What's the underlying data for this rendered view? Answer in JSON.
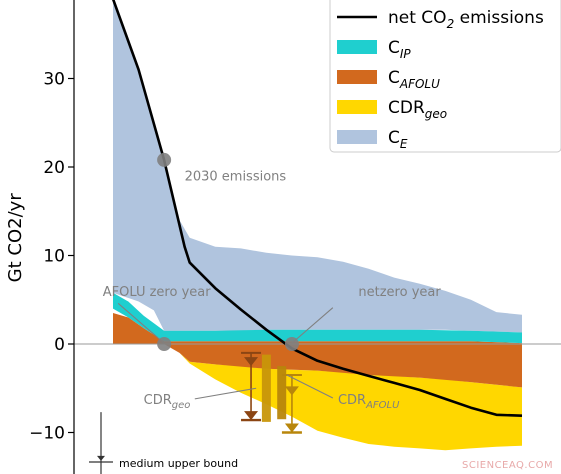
{
  "chart_data": {
    "type": "area",
    "title": "",
    "xlabel": "",
    "ylabel": "Gt CO2/yr",
    "ylim": [
      -14.5,
      39
    ],
    "yticks": [
      -10,
      0,
      10,
      20,
      30
    ],
    "x_range": [
      2020,
      2100
    ],
    "x_ticks_visible": false,
    "grid": false,
    "legend_position": "top-right",
    "net_emissions_line": {
      "name": "net CO2 emissions",
      "color": "#000000",
      "points": [
        [
          2020,
          39
        ],
        [
          2025,
          31
        ],
        [
          2030,
          20.8
        ],
        [
          2034,
          11
        ],
        [
          2035,
          9.2
        ],
        [
          2040,
          6.3
        ],
        [
          2045,
          3.9
        ],
        [
          2050,
          1.6
        ],
        [
          2055,
          -0.5
        ],
        [
          2060,
          -1.9
        ],
        [
          2065,
          -2.8
        ],
        [
          2070,
          -3.6
        ],
        [
          2075,
          -4.4
        ],
        [
          2080,
          -5.2
        ],
        [
          2085,
          -6.2
        ],
        [
          2090,
          -7.2
        ],
        [
          2095,
          -8.0
        ],
        [
          2100,
          -8.1
        ]
      ]
    },
    "stacked_series": [
      {
        "name": "C_IP",
        "legend_main": "C",
        "legend_sub": "IP",
        "color": "#1fcfcf",
        "points": [
          [
            2020,
            4.0,
            5.8
          ],
          [
            2023,
            3.0,
            4.8
          ],
          [
            2026,
            1.8,
            3.2
          ],
          [
            2030,
            0.3,
            1.5
          ],
          [
            2035,
            0.3,
            1.5
          ],
          [
            2040,
            0.3,
            1.5
          ],
          [
            2050,
            0.3,
            1.6
          ],
          [
            2060,
            0.3,
            1.6
          ],
          [
            2070,
            0.3,
            1.6
          ],
          [
            2080,
            0.3,
            1.6
          ],
          [
            2090,
            0.3,
            1.5
          ],
          [
            2100,
            0.1,
            1.3
          ]
        ]
      },
      {
        "name": "C_AFOLU",
        "legend_main": "C",
        "legend_sub": "AFOLU",
        "color": "#d2691e",
        "points": [
          [
            2020,
            0,
            3.5
          ],
          [
            2023,
            0,
            3.0
          ],
          [
            2026,
            0,
            1.8
          ],
          [
            2030,
            0,
            0.3
          ],
          [
            2033,
            -1.0,
            0.3
          ],
          [
            2035,
            -2.0,
            0.3
          ],
          [
            2040,
            -2.3,
            0.3
          ],
          [
            2050,
            -2.8,
            0.3
          ],
          [
            2060,
            -3.0,
            0.3
          ],
          [
            2070,
            -3.5,
            0.3
          ],
          [
            2080,
            -3.8,
            0.3
          ],
          [
            2090,
            -4.3,
            0.3
          ],
          [
            2100,
            -4.9,
            0.1
          ]
        ]
      },
      {
        "name": "CDR_geo",
        "legend_main": "CDR",
        "legend_sub": "geo",
        "color": "#ffd700",
        "points": [
          [
            2030,
            0,
            0
          ],
          [
            2033,
            -1.0,
            -1.0
          ],
          [
            2035,
            -2.2,
            -2.0
          ],
          [
            2040,
            -4.0,
            -2.3
          ],
          [
            2045,
            -5.5,
            -2.5
          ],
          [
            2050,
            -6.8,
            -2.8
          ],
          [
            2055,
            -8.2,
            -2.9
          ],
          [
            2060,
            -9.8,
            -3.0
          ],
          [
            2065,
            -10.6,
            -3.2
          ],
          [
            2070,
            -11.3,
            -3.5
          ],
          [
            2075,
            -11.6,
            -3.6
          ],
          [
            2080,
            -11.8,
            -3.8
          ],
          [
            2085,
            -12.0,
            -4.0
          ],
          [
            2090,
            -11.8,
            -4.3
          ],
          [
            2095,
            -11.6,
            -4.6
          ],
          [
            2100,
            -11.5,
            -4.9
          ]
        ]
      },
      {
        "name": "C_E",
        "legend_main": "C",
        "legend_sub": "E",
        "color": "#b0c4de",
        "points": [
          [
            2020,
            5.8,
            39
          ],
          [
            2025,
            4.8,
            31
          ],
          [
            2028,
            3.8,
            25
          ],
          [
            2030,
            1.5,
            21
          ],
          [
            2033,
            1.5,
            14
          ],
          [
            2035,
            1.5,
            12
          ],
          [
            2040,
            1.5,
            11
          ],
          [
            2045,
            1.5,
            10.8
          ],
          [
            2050,
            1.6,
            10.3
          ],
          [
            2055,
            1.6,
            10
          ],
          [
            2060,
            1.6,
            9.8
          ],
          [
            2065,
            1.6,
            9.3
          ],
          [
            2070,
            1.6,
            8.5
          ],
          [
            2075,
            1.6,
            7.5
          ],
          [
            2080,
            1.6,
            6.8
          ],
          [
            2085,
            1.6,
            6
          ],
          [
            2090,
            1.5,
            5
          ],
          [
            2095,
            1.4,
            3.6
          ],
          [
            2100,
            1.3,
            3.3
          ]
        ]
      }
    ],
    "legend": [
      {
        "kind": "line",
        "main": "net CO",
        "sub": "2",
        "rest": " emissions",
        "color": "#000000"
      },
      {
        "kind": "patch",
        "main": "C",
        "sub": "IP",
        "color": "#1fcfcf"
      },
      {
        "kind": "patch",
        "main": "C",
        "sub": "AFOLU",
        "color": "#d2691e"
      },
      {
        "kind": "patch",
        "main": "CDR",
        "sub": "geo",
        "color": "#ffd700"
      },
      {
        "kind": "patch",
        "main": "C",
        "sub": "E",
        "color": "#b0c4de"
      }
    ],
    "markers": [
      {
        "name": "2030 emissions",
        "x": 2030,
        "y": 20.8,
        "color": "#808080"
      },
      {
        "name": "AFOLU zero year",
        "x": 2030,
        "y": 0,
        "color": "#808080"
      },
      {
        "name": "netzero year",
        "x": 2055,
        "y": 0,
        "color": "#808080"
      }
    ],
    "annotations": [
      {
        "id": "emissions-2030",
        "main": "2030 emissions",
        "sub": "",
        "x": 2034,
        "y": 18.5
      },
      {
        "id": "afolu-zero-year",
        "main": "AFOLU zero year",
        "sub": "",
        "x": 2018,
        "y": 5.4
      },
      {
        "id": "netzero-year",
        "main": "netzero year",
        "sub": "",
        "x": 2068,
        "y": 5.4
      },
      {
        "id": "cdr-geo",
        "main": "CDR",
        "sub": "geo",
        "x": 2026,
        "y": -6.8
      },
      {
        "id": "cdr-afolu",
        "main": "CDR",
        "sub": "AFOLU",
        "x": 2064,
        "y": -6.8
      }
    ],
    "cdr_bars": [
      {
        "name": "CDR_geo cumulative",
        "x": 2050,
        "y_top": -1.2,
        "y_bottom": -8.8,
        "color": "#c8960a"
      },
      {
        "name": "CDR_AFOLU cumulative",
        "x": 2053,
        "y_top": -2.5,
        "y_bottom": -8.5,
        "color": "#b8860b"
      }
    ],
    "bound_markers": [
      {
        "color": "#8b4513",
        "x": 2047,
        "y_top": -1.0,
        "y_mid": -2.5,
        "y_bottom": -8.6
      },
      {
        "color": "#b8860b",
        "x": 2055,
        "y_top": -3.5,
        "y_mid": -5.8,
        "y_bottom": -10.0
      }
    ],
    "bottom_legend": {
      "label": "medium upper bound",
      "x": 2016,
      "y_top": -7.7,
      "y_arrow": -13.2
    }
  },
  "watermark": "SCIENCEAQ.COM"
}
